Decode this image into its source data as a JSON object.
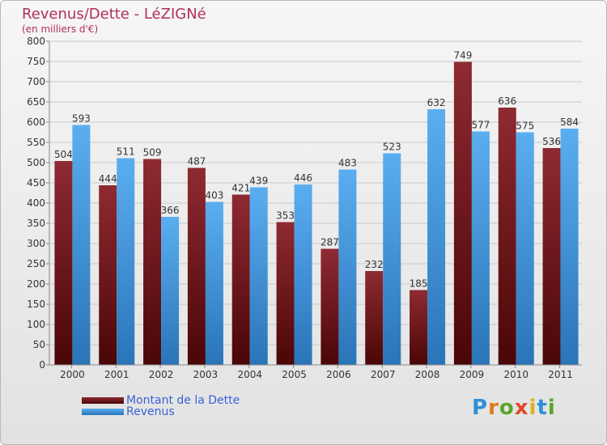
{
  "title": "Revenus/Dette - LéZIGNé",
  "subtitle": "(en milliers d'€)",
  "colors": {
    "title": "#b0305a",
    "dette": "#7a1c22",
    "revenus": "#4aa0e6",
    "legend_text": "#3a62d8"
  },
  "chart_data": {
    "type": "bar",
    "categories": [
      "2000",
      "2001",
      "2002",
      "2003",
      "2004",
      "2005",
      "2006",
      "2007",
      "2008",
      "2009",
      "2010",
      "2011"
    ],
    "series": [
      {
        "name": "Montant de la Dette",
        "values": [
          504,
          444,
          509,
          487,
          421,
          353,
          287,
          232,
          185,
          749,
          636,
          536
        ]
      },
      {
        "name": "Revenus",
        "values": [
          593,
          511,
          366,
          403,
          439,
          446,
          483,
          523,
          632,
          577,
          575,
          584
        ]
      }
    ],
    "ylim": [
      0,
      800
    ],
    "yticks": [
      0,
      50,
      100,
      150,
      200,
      250,
      300,
      350,
      400,
      450,
      500,
      550,
      600,
      650,
      700,
      750,
      800
    ],
    "grid": true,
    "legend_position": "bottom-left"
  },
  "legend": {
    "dette": "Montant de la Dette",
    "revenus": "Revenus"
  },
  "logo": "Proxiti"
}
